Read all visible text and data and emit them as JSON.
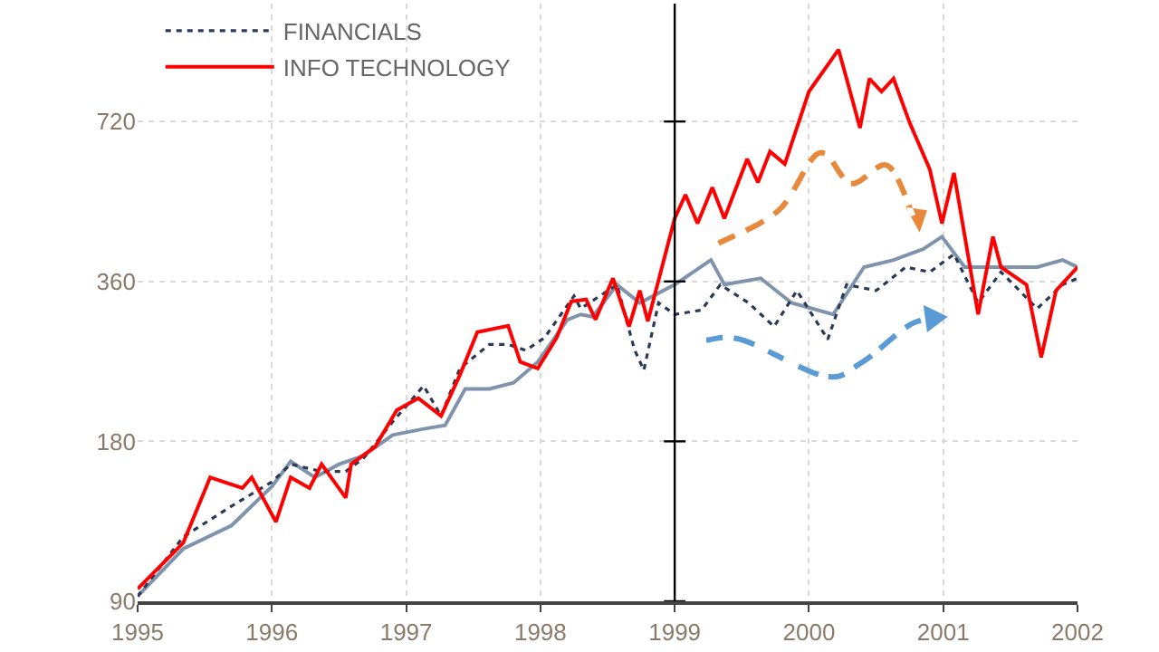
{
  "chart_data": {
    "type": "line",
    "log": "y",
    "grid": true,
    "legend": "top left",
    "marker": "none",
    "xlim": [
      1995,
      2002
    ],
    "xticks": [
      1995,
      1996,
      1997,
      1998,
      1999,
      2000,
      2001,
      2002
    ],
    "ylim": [
      90,
      1200
    ],
    "yticks": [
      90,
      180,
      360,
      720
    ],
    "ref_lines": [
      {
        "axis": "x",
        "value": 1999,
        "label": null,
        "color": "#000000"
      }
    ],
    "series": [
      {
        "color": "#7f93ad",
        "line_style": "solid",
        "x": [
          1995.0,
          1995.34,
          1995.7,
          1996.0,
          1996.14,
          1996.32,
          1996.5,
          1996.68,
          1996.9,
          1997.13,
          1997.29,
          1997.44,
          1997.62,
          1997.8,
          1997.98,
          1998.2,
          1998.3,
          1998.39,
          1998.57,
          1998.74,
          1999.0,
          1999.27,
          1999.37,
          1999.64,
          1999.87,
          2000.18,
          2000.41,
          2000.63,
          2000.85,
          2000.99,
          2001.16,
          2001.43,
          2001.7,
          2001.89,
          2002.0
        ],
        "values": [
          92,
          113,
          125,
          148,
          165,
          154,
          163,
          169,
          185,
          190,
          193,
          226,
          226,
          232,
          254,
          305,
          312,
          309,
          355,
          328,
          355,
          395,
          355,
          365,
          328,
          312,
          383,
          395,
          414,
          437,
          383,
          383,
          383,
          395,
          383
        ]
      },
      {
        "name": "FINANCIALS",
        "color": "#2a3a55",
        "line_style": "dotted",
        "x": [
          1995.0,
          1995.34,
          1995.7,
          1996.0,
          1996.14,
          1996.37,
          1996.55,
          1996.68,
          1996.9,
          1997.13,
          1997.26,
          1997.4,
          1997.62,
          1997.76,
          1997.89,
          1998.03,
          1998.25,
          1998.3,
          1998.57,
          1998.7,
          1998.77,
          1998.88,
          1999.0,
          1999.2,
          1999.34,
          1999.55,
          1999.74,
          1999.91,
          2000.14,
          2000.28,
          2000.5,
          2000.72,
          2000.9,
          2001.08,
          2001.26,
          2001.43,
          2001.7,
          2001.89,
          2002.0
        ],
        "values": [
          92,
          119,
          136,
          151,
          163,
          158,
          158,
          167,
          196,
          229,
          201,
          247,
          274,
          274,
          267,
          282,
          338,
          320,
          355,
          268,
          245,
          328,
          312,
          318,
          355,
          328,
          296,
          346,
          280,
          355,
          346,
          383,
          375,
          405,
          328,
          375,
          320,
          355,
          365
        ]
      },
      {
        "name": "INFO TECHNOLOGY",
        "color": "#ff0000",
        "line_style": "solid",
        "x": [
          1995.0,
          1995.34,
          1995.54,
          1995.78,
          1995.85,
          1996.03,
          1996.14,
          1996.28,
          1996.37,
          1996.55,
          1996.59,
          1996.77,
          1996.93,
          1997.09,
          1997.26,
          1997.4,
          1997.53,
          1997.76,
          1997.85,
          1997.98,
          1998.12,
          1998.23,
          1998.34,
          1998.41,
          1998.54,
          1998.66,
          1998.74,
          1998.8,
          1999.0,
          1999.08,
          1999.17,
          1999.28,
          1999.37,
          1999.54,
          1999.62,
          1999.71,
          1999.82,
          2000.0,
          2000.22,
          2000.28,
          2000.38,
          2000.45,
          2000.54,
          2000.63,
          2000.75,
          2000.9,
          2000.99,
          2001.08,
          2001.26,
          2001.37,
          2001.43,
          2001.62,
          2001.73,
          2001.84,
          2002.0
        ],
        "values": [
          95,
          116,
          154,
          147,
          154,
          127,
          154,
          147,
          163,
          141,
          163,
          176,
          206,
          217,
          201,
          240,
          289,
          297,
          254,
          247,
          282,
          330,
          333,
          305,
          365,
          296,
          346,
          303,
          473,
          524,
          463,
          541,
          473,
          612,
          553,
          632,
          599,
          820,
          983,
          867,
          700,
          867,
          820,
          867,
          716,
          585,
          463,
          576,
          312,
          437,
          383,
          355,
          259,
          346,
          383
        ]
      }
    ]
  }
}
